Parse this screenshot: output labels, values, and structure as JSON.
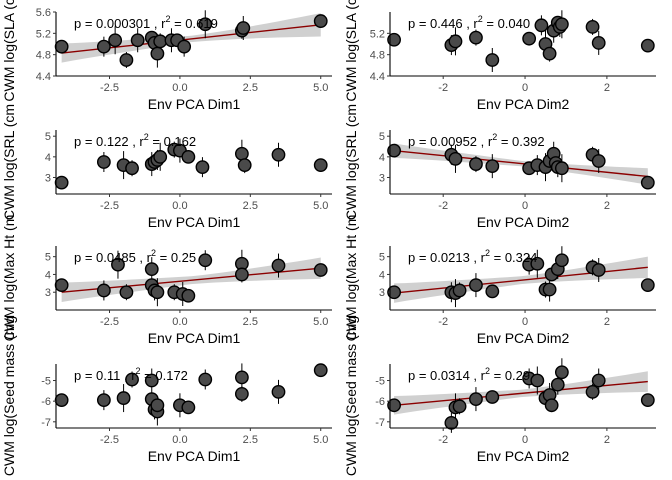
{
  "chart_data": [
    {
      "type": "scatter",
      "id": "sla-dim1",
      "xlabel": "Env PCA Dim1",
      "ylabel": "CWM log(SLA (cm",
      "xlim": [
        -4.4,
        5.4
      ],
      "ylim": [
        4.4,
        5.6
      ],
      "xticks": [
        -2.5,
        0.0,
        2.5,
        5.0
      ],
      "xtick_labels": [
        "-2.5",
        "0.0",
        "2.5",
        "5.0"
      ],
      "yticks": [
        4.4,
        4.8,
        5.2,
        5.6
      ],
      "ytick_labels": [
        "4.4",
        "4.8",
        "5.2",
        "5.6"
      ],
      "p_label": "p = 0.000301",
      "r2_label": "0.619",
      "trend": {
        "x": [
          -4.2,
          5.0
        ],
        "y": [
          4.83,
          5.36
        ]
      },
      "band_halfwidth": [
        0.18,
        0.06,
        0.22
      ],
      "points": [
        [
          -4.2,
          4.95
        ],
        [
          -2.7,
          4.95
        ],
        [
          -2.3,
          5.07
        ],
        [
          -1.9,
          4.7
        ],
        [
          -1.5,
          5.07
        ],
        [
          -1.0,
          5.12
        ],
        [
          -0.9,
          5.02
        ],
        [
          -0.8,
          4.82
        ],
        [
          -0.7,
          5.05
        ],
        [
          -0.3,
          5.07
        ],
        [
          -0.1,
          5.07
        ],
        [
          0.15,
          4.95
        ],
        [
          0.9,
          5.37
        ],
        [
          2.2,
          5.25
        ],
        [
          2.25,
          5.3
        ],
        [
          5.0,
          5.43
        ]
      ]
    },
    {
      "type": "scatter",
      "id": "sla-dim2",
      "xlabel": "Env PCA Dim2",
      "ylabel": "",
      "xlim": [
        -3.3,
        3.2
      ],
      "ylim": [
        4.4,
        5.6
      ],
      "xticks": [
        -2,
        0,
        2
      ],
      "xtick_labels": [
        "-2",
        "0",
        "2"
      ],
      "yticks": [
        4.4,
        4.8,
        5.2
      ],
      "ytick_labels": [
        "4.4",
        "4.8",
        "5.2"
      ],
      "p_label": "p = 0.446",
      "r2_label": "0.040",
      "trend": null,
      "points": [
        [
          -3.2,
          5.08
        ],
        [
          -1.8,
          4.98
        ],
        [
          -1.7,
          5.05
        ],
        [
          -1.2,
          5.12
        ],
        [
          -0.8,
          4.7
        ],
        [
          0.1,
          5.1
        ],
        [
          0.4,
          5.35
        ],
        [
          0.5,
          5.0
        ],
        [
          0.6,
          4.82
        ],
        [
          0.7,
          5.25
        ],
        [
          0.8,
          5.4
        ],
        [
          0.85,
          5.32
        ],
        [
          0.9,
          5.37
        ],
        [
          1.65,
          5.32
        ],
        [
          1.8,
          5.02
        ],
        [
          3.0,
          4.97
        ]
      ]
    },
    {
      "type": "scatter",
      "id": "srl-dim1",
      "xlabel": "Env PCA Dim1",
      "ylabel": "CWM log(SRL (cm",
      "xlim": [
        -4.4,
        5.4
      ],
      "ylim": [
        2.2,
        5.3
      ],
      "xticks": [
        -2.5,
        0.0,
        2.5,
        5.0
      ],
      "xtick_labels": [
        "-2.5",
        "0.0",
        "2.5",
        "5.0"
      ],
      "yticks": [
        3,
        4,
        5
      ],
      "ytick_labels": [
        "3",
        "4",
        "5"
      ],
      "p_label": "p = 0.122",
      "r2_label": "0.162",
      "trend": null,
      "points": [
        [
          -4.2,
          2.75
        ],
        [
          -2.7,
          3.75
        ],
        [
          -2.0,
          3.6
        ],
        [
          -1.7,
          3.45
        ],
        [
          -1.0,
          3.65
        ],
        [
          -0.9,
          3.75
        ],
        [
          -0.8,
          3.85
        ],
        [
          -0.7,
          4.0
        ],
        [
          -0.2,
          4.35
        ],
        [
          0.0,
          4.3
        ],
        [
          0.3,
          4.0
        ],
        [
          0.8,
          3.5
        ],
        [
          2.2,
          4.15
        ],
        [
          2.3,
          3.6
        ],
        [
          3.5,
          4.1
        ],
        [
          5.0,
          3.6
        ]
      ]
    },
    {
      "type": "scatter",
      "id": "srl-dim2",
      "xlabel": "Env PCA Dim2",
      "ylabel": "",
      "xlim": [
        -3.3,
        3.2
      ],
      "ylim": [
        2.2,
        5.3
      ],
      "xticks": [
        -2,
        0,
        2
      ],
      "xtick_labels": [
        "-2",
        "0",
        "2"
      ],
      "yticks": [
        3,
        4,
        5
      ],
      "ytick_labels": [
        "3",
        "4",
        "5"
      ],
      "p_label": "p = 0.00952",
      "r2_label": "0.392",
      "trend": {
        "x": [
          -3.2,
          3.0
        ],
        "y": [
          4.3,
          3.05
        ]
      },
      "band_halfwidth": [
        0.35,
        0.13,
        0.4
      ],
      "points": [
        [
          -3.2,
          4.3
        ],
        [
          -1.8,
          4.1
        ],
        [
          -1.7,
          3.9
        ],
        [
          -1.2,
          3.65
        ],
        [
          -0.8,
          3.55
        ],
        [
          0.1,
          3.45
        ],
        [
          0.3,
          3.6
        ],
        [
          0.5,
          3.5
        ],
        [
          0.6,
          3.8
        ],
        [
          0.7,
          4.15
        ],
        [
          0.75,
          3.7
        ],
        [
          0.8,
          3.5
        ],
        [
          0.9,
          3.45
        ],
        [
          1.65,
          4.1
        ],
        [
          1.8,
          3.8
        ],
        [
          3.0,
          2.75
        ]
      ]
    },
    {
      "type": "scatter",
      "id": "ht-dim1",
      "xlabel": "Env PCA Dim1",
      "ylabel": "CWM log(Max Ht (m",
      "xlim": [
        -4.4,
        5.4
      ],
      "ylim": [
        2.0,
        5.6
      ],
      "xticks": [
        -2.5,
        0.0,
        2.5,
        5.0
      ],
      "xtick_labels": [
        "-2.5",
        "0.0",
        "2.5",
        "5.0"
      ],
      "yticks": [
        3,
        4,
        5
      ],
      "ytick_labels": [
        "3",
        "4",
        "5"
      ],
      "p_label": "p = 0.0485",
      "r2_label": "0.25",
      "trend": {
        "x": [
          -4.2,
          5.0
        ],
        "y": [
          3.0,
          4.35
        ]
      },
      "band_halfwidth": [
        0.55,
        0.22,
        0.6
      ],
      "points": [
        [
          -4.2,
          3.4
        ],
        [
          -2.7,
          3.1
        ],
        [
          -2.2,
          4.55
        ],
        [
          -1.9,
          3.0
        ],
        [
          -1.0,
          4.3
        ],
        [
          -1.0,
          3.4
        ],
        [
          -0.9,
          3.1
        ],
        [
          -0.8,
          3.0
        ],
        [
          -0.2,
          3.0
        ],
        [
          0.1,
          2.9
        ],
        [
          0.3,
          2.8
        ],
        [
          0.9,
          4.8
        ],
        [
          2.2,
          4.6
        ],
        [
          2.2,
          4.0
        ],
        [
          3.5,
          4.5
        ],
        [
          5.0,
          4.25
        ]
      ]
    },
    {
      "type": "scatter",
      "id": "ht-dim2",
      "xlabel": "Env PCA Dim2",
      "ylabel": "",
      "xlim": [
        -3.3,
        3.2
      ],
      "ylim": [
        2.0,
        5.6
      ],
      "xticks": [
        -2,
        0,
        2
      ],
      "xtick_labels": [
        "-2",
        "0",
        "2"
      ],
      "yticks": [
        3,
        4,
        5
      ],
      "ytick_labels": [
        "3",
        "4",
        "5"
      ],
      "p_label": "p = 0.0213",
      "r2_label": "0.324",
      "trend": {
        "x": [
          -3.2,
          3.0
        ],
        "y": [
          2.95,
          4.4
        ]
      },
      "band_halfwidth": [
        0.55,
        0.22,
        0.6
      ],
      "points": [
        [
          -3.2,
          3.0
        ],
        [
          -1.8,
          3.0
        ],
        [
          -1.7,
          2.95
        ],
        [
          -1.6,
          3.1
        ],
        [
          -1.2,
          3.4
        ],
        [
          -0.8,
          3.05
        ],
        [
          0.1,
          4.55
        ],
        [
          0.3,
          4.6
        ],
        [
          0.5,
          3.15
        ],
        [
          0.6,
          3.15
        ],
        [
          0.65,
          4.0
        ],
        [
          0.8,
          4.3
        ],
        [
          0.9,
          4.8
        ],
        [
          1.65,
          4.4
        ],
        [
          1.8,
          4.25
        ],
        [
          3.0,
          3.4
        ]
      ]
    },
    {
      "type": "scatter",
      "id": "seed-dim1",
      "xlabel": "Env PCA Dim1",
      "ylabel": "CWM log(Seed mass (mg",
      "xlim": [
        -4.4,
        5.4
      ],
      "ylim": [
        -7.3,
        -4.2
      ],
      "xticks": [
        -2.5,
        0.0,
        2.5,
        5.0
      ],
      "xtick_labels": [
        "-2.5",
        "0.0",
        "2.5",
        "5.0"
      ],
      "yticks": [
        -7,
        -6,
        -5
      ],
      "ytick_labels": [
        "-7",
        "-6",
        "-5"
      ],
      "p_label": "p = 0.11",
      "r2_label": "0.172",
      "trend": null,
      "points": [
        [
          -4.2,
          -5.95
        ],
        [
          -2.7,
          -5.95
        ],
        [
          -2.0,
          -5.85
        ],
        [
          -1.7,
          -4.95
        ],
        [
          -1.0,
          -5.0
        ],
        [
          -1.0,
          -5.9
        ],
        [
          -0.9,
          -6.4
        ],
        [
          -0.8,
          -6.5
        ],
        [
          -0.8,
          -6.2
        ],
        [
          0.0,
          -6.2
        ],
        [
          0.3,
          -6.3
        ],
        [
          0.9,
          -4.95
        ],
        [
          2.2,
          -4.85
        ],
        [
          2.2,
          -5.65
        ],
        [
          3.5,
          -5.55
        ],
        [
          5.0,
          -4.5
        ]
      ]
    },
    {
      "type": "scatter",
      "id": "seed-dim2",
      "xlabel": "Env PCA Dim2",
      "ylabel": "",
      "xlim": [
        -3.3,
        3.2
      ],
      "ylim": [
        -7.3,
        -4.2
      ],
      "xticks": [
        -2,
        0,
        2
      ],
      "xtick_labels": [
        "-2",
        "0",
        "2"
      ],
      "yticks": [
        -7,
        -6,
        -5
      ],
      "ytick_labels": [
        "-7",
        "-6",
        "-5"
      ],
      "p_label": "p = 0.0314",
      "r2_label": "0.29",
      "trend": {
        "x": [
          -3.2,
          3.0
        ],
        "y": [
          -6.2,
          -5.05
        ]
      },
      "band_halfwidth": [
        0.45,
        0.18,
        0.5
      ],
      "points": [
        [
          -3.2,
          -6.2
        ],
        [
          -1.8,
          -7.05
        ],
        [
          -1.7,
          -6.3
        ],
        [
          -1.6,
          -6.25
        ],
        [
          -1.2,
          -5.9
        ],
        [
          -0.8,
          -5.8
        ],
        [
          0.1,
          -4.9
        ],
        [
          0.3,
          -5.0
        ],
        [
          0.5,
          -5.85
        ],
        [
          0.6,
          -5.7
        ],
        [
          0.65,
          -6.2
        ],
        [
          0.8,
          -5.2
        ],
        [
          0.9,
          -4.6
        ],
        [
          1.65,
          -5.55
        ],
        [
          1.8,
          -5.0
        ],
        [
          3.0,
          -5.95
        ]
      ]
    }
  ]
}
